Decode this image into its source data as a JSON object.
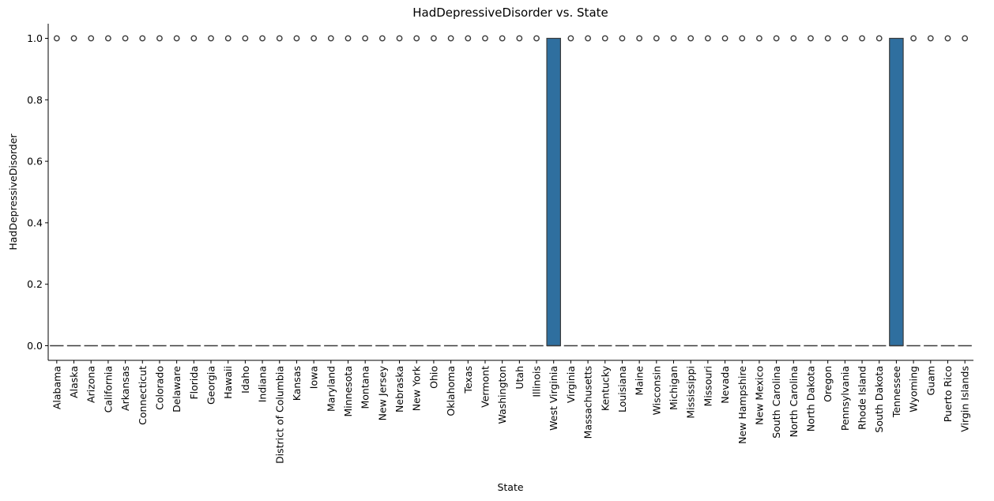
{
  "chart_data": {
    "type": "box",
    "title": "HadDepressiveDisorder vs. State",
    "xlabel": "State",
    "ylabel": "HadDepressiveDisorder",
    "ylim": [
      -0.05,
      1.05
    ],
    "yticks": [
      0.0,
      0.2,
      0.4,
      0.6,
      0.8,
      1.0
    ],
    "ytick_labels": [
      "0.0",
      "0.2",
      "0.4",
      "0.6",
      "0.8",
      "1.0"
    ],
    "grid": false,
    "box_color": "#2f6f9f",
    "categories": [
      "Alabama",
      "Alaska",
      "Arizona",
      "California",
      "Arkansas",
      "Connecticut",
      "Colorado",
      "Delaware",
      "Florida",
      "Georgia",
      "Hawaii",
      "Idaho",
      "Indiana",
      "District of Columbia",
      "Kansas",
      "Iowa",
      "Maryland",
      "Minnesota",
      "Montana",
      "New Jersey",
      "Nebraska",
      "New York",
      "Ohio",
      "Oklahoma",
      "Texas",
      "Vermont",
      "Washington",
      "Utah",
      "Illinois",
      "West Virginia",
      "Virginia",
      "Massachusetts",
      "Kentucky",
      "Louisiana",
      "Maine",
      "Wisconsin",
      "Michigan",
      "Mississippi",
      "Missouri",
      "Nevada",
      "New Hampshire",
      "New Mexico",
      "South Carolina",
      "North Carolina",
      "North Dakota",
      "Oregon",
      "Pennsylvania",
      "Rhode Island",
      "South Dakota",
      "Tennessee",
      "Wyoming",
      "Guam",
      "Puerto Rico",
      "Virgin Islands"
    ],
    "series": [
      {
        "values": [
          {
            "q1": 0,
            "median": 0,
            "q3": 0,
            "whislo": 0,
            "whishi": 0,
            "outliers": [
              1
            ]
          },
          {
            "q1": 0,
            "median": 0,
            "q3": 0,
            "whislo": 0,
            "whishi": 0,
            "outliers": [
              1
            ]
          },
          {
            "q1": 0,
            "median": 0,
            "q3": 0,
            "whislo": 0,
            "whishi": 0,
            "outliers": [
              1
            ]
          },
          {
            "q1": 0,
            "median": 0,
            "q3": 0,
            "whislo": 0,
            "whishi": 0,
            "outliers": [
              1
            ]
          },
          {
            "q1": 0,
            "median": 0,
            "q3": 0,
            "whislo": 0,
            "whishi": 0,
            "outliers": [
              1
            ]
          },
          {
            "q1": 0,
            "median": 0,
            "q3": 0,
            "whislo": 0,
            "whishi": 0,
            "outliers": [
              1
            ]
          },
          {
            "q1": 0,
            "median": 0,
            "q3": 0,
            "whislo": 0,
            "whishi": 0,
            "outliers": [
              1
            ]
          },
          {
            "q1": 0,
            "median": 0,
            "q3": 0,
            "whislo": 0,
            "whishi": 0,
            "outliers": [
              1
            ]
          },
          {
            "q1": 0,
            "median": 0,
            "q3": 0,
            "whislo": 0,
            "whishi": 0,
            "outliers": [
              1
            ]
          },
          {
            "q1": 0,
            "median": 0,
            "q3": 0,
            "whislo": 0,
            "whishi": 0,
            "outliers": [
              1
            ]
          },
          {
            "q1": 0,
            "median": 0,
            "q3": 0,
            "whislo": 0,
            "whishi": 0,
            "outliers": [
              1
            ]
          },
          {
            "q1": 0,
            "median": 0,
            "q3": 0,
            "whislo": 0,
            "whishi": 0,
            "outliers": [
              1
            ]
          },
          {
            "q1": 0,
            "median": 0,
            "q3": 0,
            "whislo": 0,
            "whishi": 0,
            "outliers": [
              1
            ]
          },
          {
            "q1": 0,
            "median": 0,
            "q3": 0,
            "whislo": 0,
            "whishi": 0,
            "outliers": [
              1
            ]
          },
          {
            "q1": 0,
            "median": 0,
            "q3": 0,
            "whislo": 0,
            "whishi": 0,
            "outliers": [
              1
            ]
          },
          {
            "q1": 0,
            "median": 0,
            "q3": 0,
            "whislo": 0,
            "whishi": 0,
            "outliers": [
              1
            ]
          },
          {
            "q1": 0,
            "median": 0,
            "q3": 0,
            "whislo": 0,
            "whishi": 0,
            "outliers": [
              1
            ]
          },
          {
            "q1": 0,
            "median": 0,
            "q3": 0,
            "whislo": 0,
            "whishi": 0,
            "outliers": [
              1
            ]
          },
          {
            "q1": 0,
            "median": 0,
            "q3": 0,
            "whislo": 0,
            "whishi": 0,
            "outliers": [
              1
            ]
          },
          {
            "q1": 0,
            "median": 0,
            "q3": 0,
            "whislo": 0,
            "whishi": 0,
            "outliers": [
              1
            ]
          },
          {
            "q1": 0,
            "median": 0,
            "q3": 0,
            "whislo": 0,
            "whishi": 0,
            "outliers": [
              1
            ]
          },
          {
            "q1": 0,
            "median": 0,
            "q3": 0,
            "whislo": 0,
            "whishi": 0,
            "outliers": [
              1
            ]
          },
          {
            "q1": 0,
            "median": 0,
            "q3": 0,
            "whislo": 0,
            "whishi": 0,
            "outliers": [
              1
            ]
          },
          {
            "q1": 0,
            "median": 0,
            "q3": 0,
            "whislo": 0,
            "whishi": 0,
            "outliers": [
              1
            ]
          },
          {
            "q1": 0,
            "median": 0,
            "q3": 0,
            "whislo": 0,
            "whishi": 0,
            "outliers": [
              1
            ]
          },
          {
            "q1": 0,
            "median": 0,
            "q3": 0,
            "whislo": 0,
            "whishi": 0,
            "outliers": [
              1
            ]
          },
          {
            "q1": 0,
            "median": 0,
            "q3": 0,
            "whislo": 0,
            "whishi": 0,
            "outliers": [
              1
            ]
          },
          {
            "q1": 0,
            "median": 0,
            "q3": 0,
            "whislo": 0,
            "whishi": 0,
            "outliers": [
              1
            ]
          },
          {
            "q1": 0,
            "median": 0,
            "q3": 0,
            "whislo": 0,
            "whishi": 0,
            "outliers": [
              1
            ]
          },
          {
            "q1": 0,
            "median": 0,
            "q3": 1,
            "whislo": 0,
            "whishi": 1,
            "outliers": []
          },
          {
            "q1": 0,
            "median": 0,
            "q3": 0,
            "whislo": 0,
            "whishi": 0,
            "outliers": [
              1
            ]
          },
          {
            "q1": 0,
            "median": 0,
            "q3": 0,
            "whislo": 0,
            "whishi": 0,
            "outliers": [
              1
            ]
          },
          {
            "q1": 0,
            "median": 0,
            "q3": 0,
            "whislo": 0,
            "whishi": 0,
            "outliers": [
              1
            ]
          },
          {
            "q1": 0,
            "median": 0,
            "q3": 0,
            "whislo": 0,
            "whishi": 0,
            "outliers": [
              1
            ]
          },
          {
            "q1": 0,
            "median": 0,
            "q3": 0,
            "whislo": 0,
            "whishi": 0,
            "outliers": [
              1
            ]
          },
          {
            "q1": 0,
            "median": 0,
            "q3": 0,
            "whislo": 0,
            "whishi": 0,
            "outliers": [
              1
            ]
          },
          {
            "q1": 0,
            "median": 0,
            "q3": 0,
            "whislo": 0,
            "whishi": 0,
            "outliers": [
              1
            ]
          },
          {
            "q1": 0,
            "median": 0,
            "q3": 0,
            "whislo": 0,
            "whishi": 0,
            "outliers": [
              1
            ]
          },
          {
            "q1": 0,
            "median": 0,
            "q3": 0,
            "whislo": 0,
            "whishi": 0,
            "outliers": [
              1
            ]
          },
          {
            "q1": 0,
            "median": 0,
            "q3": 0,
            "whislo": 0,
            "whishi": 0,
            "outliers": [
              1
            ]
          },
          {
            "q1": 0,
            "median": 0,
            "q3": 0,
            "whislo": 0,
            "whishi": 0,
            "outliers": [
              1
            ]
          },
          {
            "q1": 0,
            "median": 0,
            "q3": 0,
            "whislo": 0,
            "whishi": 0,
            "outliers": [
              1
            ]
          },
          {
            "q1": 0,
            "median": 0,
            "q3": 0,
            "whislo": 0,
            "whishi": 0,
            "outliers": [
              1
            ]
          },
          {
            "q1": 0,
            "median": 0,
            "q3": 0,
            "whislo": 0,
            "whishi": 0,
            "outliers": [
              1
            ]
          },
          {
            "q1": 0,
            "median": 0,
            "q3": 0,
            "whislo": 0,
            "whishi": 0,
            "outliers": [
              1
            ]
          },
          {
            "q1": 0,
            "median": 0,
            "q3": 0,
            "whislo": 0,
            "whishi": 0,
            "outliers": [
              1
            ]
          },
          {
            "q1": 0,
            "median": 0,
            "q3": 0,
            "whislo": 0,
            "whishi": 0,
            "outliers": [
              1
            ]
          },
          {
            "q1": 0,
            "median": 0,
            "q3": 0,
            "whislo": 0,
            "whishi": 0,
            "outliers": [
              1
            ]
          },
          {
            "q1": 0,
            "median": 0,
            "q3": 0,
            "whislo": 0,
            "whishi": 0,
            "outliers": [
              1
            ]
          },
          {
            "q1": 0,
            "median": 0,
            "q3": 1,
            "whislo": 0,
            "whishi": 1,
            "outliers": []
          },
          {
            "q1": 0,
            "median": 0,
            "q3": 0,
            "whislo": 0,
            "whishi": 0,
            "outliers": [
              1
            ]
          },
          {
            "q1": 0,
            "median": 0,
            "q3": 0,
            "whislo": 0,
            "whishi": 0,
            "outliers": [
              1
            ]
          },
          {
            "q1": 0,
            "median": 0,
            "q3": 0,
            "whislo": 0,
            "whishi": 0,
            "outliers": [
              1
            ]
          },
          {
            "q1": 0,
            "median": 0,
            "q3": 0,
            "whislo": 0,
            "whishi": 0,
            "outliers": [
              1
            ]
          }
        ]
      }
    ]
  }
}
